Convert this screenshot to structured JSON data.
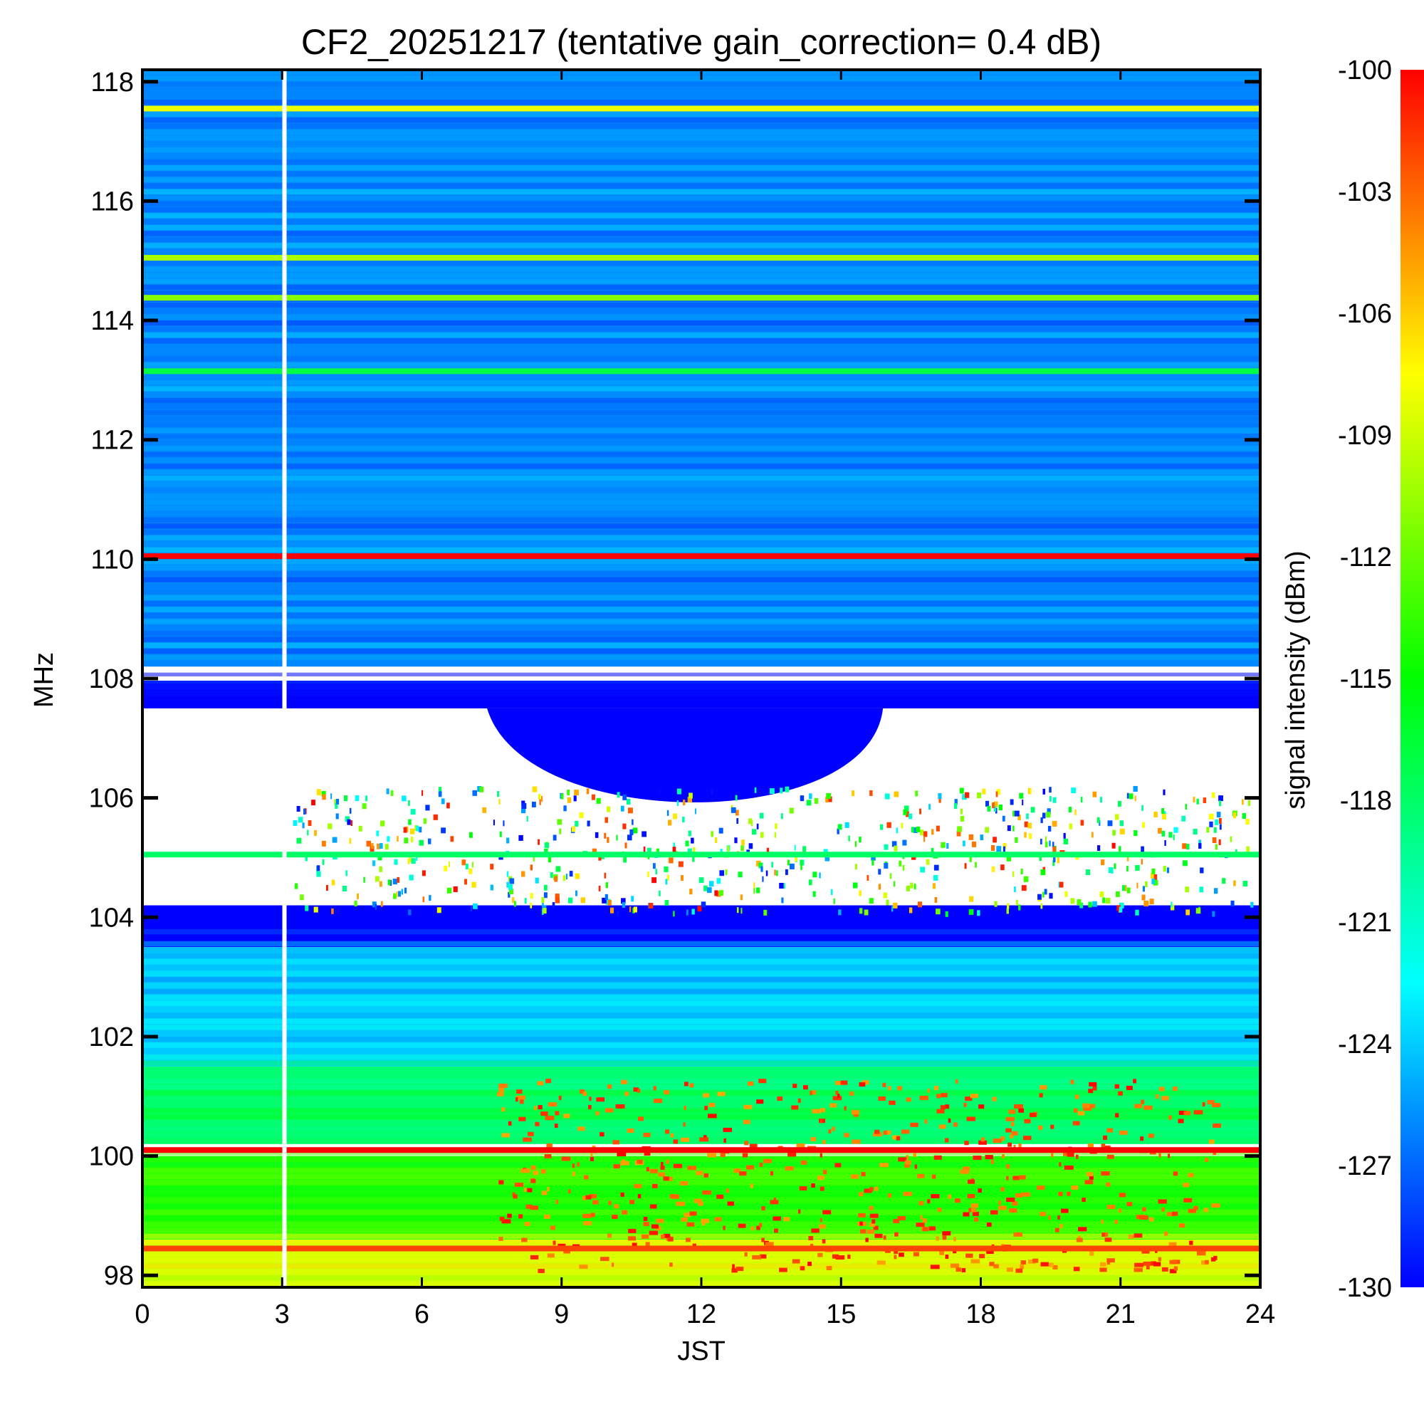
{
  "chart_data": {
    "type": "heatmap",
    "title": "CF2_20251217 (tentative gain_correction=  0.4 dB)",
    "xlabel": "JST",
    "ylabel": "MHz",
    "xlim": [
      0,
      24
    ],
    "ylim": [
      97.8,
      118.2
    ],
    "x_ticks": [
      "0",
      "3",
      "6",
      "9",
      "12",
      "15",
      "18",
      "21",
      "24"
    ],
    "y_ticks": [
      "98",
      "100",
      "102",
      "104",
      "106",
      "108",
      "110",
      "112",
      "114",
      "116",
      "118"
    ],
    "colorbar": {
      "label": "signal intensity (dBm)",
      "range": [
        -130,
        -100
      ],
      "ticks": [
        "-100",
        "-103",
        "-106",
        "-109",
        "-112",
        "-115",
        "-118",
        "-121",
        "-124",
        "-127",
        "-130"
      ],
      "colors": [
        "#0000ff",
        "#0080ff",
        "#00ffff",
        "#00ff80",
        "#00ff00",
        "#80ff00",
        "#ffff00",
        "#ff8000",
        "#ff0000"
      ]
    },
    "data_gap_jst": 3.05,
    "strong_carriers_mhz": [
      {
        "freq": 117.55,
        "level": -108
      },
      {
        "freq": 115.05,
        "level": -110
      },
      {
        "freq": 114.38,
        "level": -111
      },
      {
        "freq": 113.15,
        "level": -117
      },
      {
        "freq": 110.05,
        "level": -100
      },
      {
        "freq": 105.05,
        "level": -118
      },
      {
        "freq": 100.1,
        "level": -100
      },
      {
        "freq": 98.45,
        "level": -102
      }
    ],
    "background_levels": [
      {
        "from_mhz": 108.2,
        "to_mhz": 118.2,
        "level": -126
      },
      {
        "from_mhz": 103.5,
        "to_mhz": 108.0,
        "level": -130
      },
      {
        "from_mhz": 101.5,
        "to_mhz": 103.5,
        "level": -124
      },
      {
        "from_mhz": 100.2,
        "to_mhz": 101.5,
        "level": -118
      },
      {
        "from_mhz": 98.6,
        "to_mhz": 100.0,
        "level": -114
      },
      {
        "from_mhz": 97.8,
        "to_mhz": 98.6,
        "level": -109
      }
    ]
  }
}
